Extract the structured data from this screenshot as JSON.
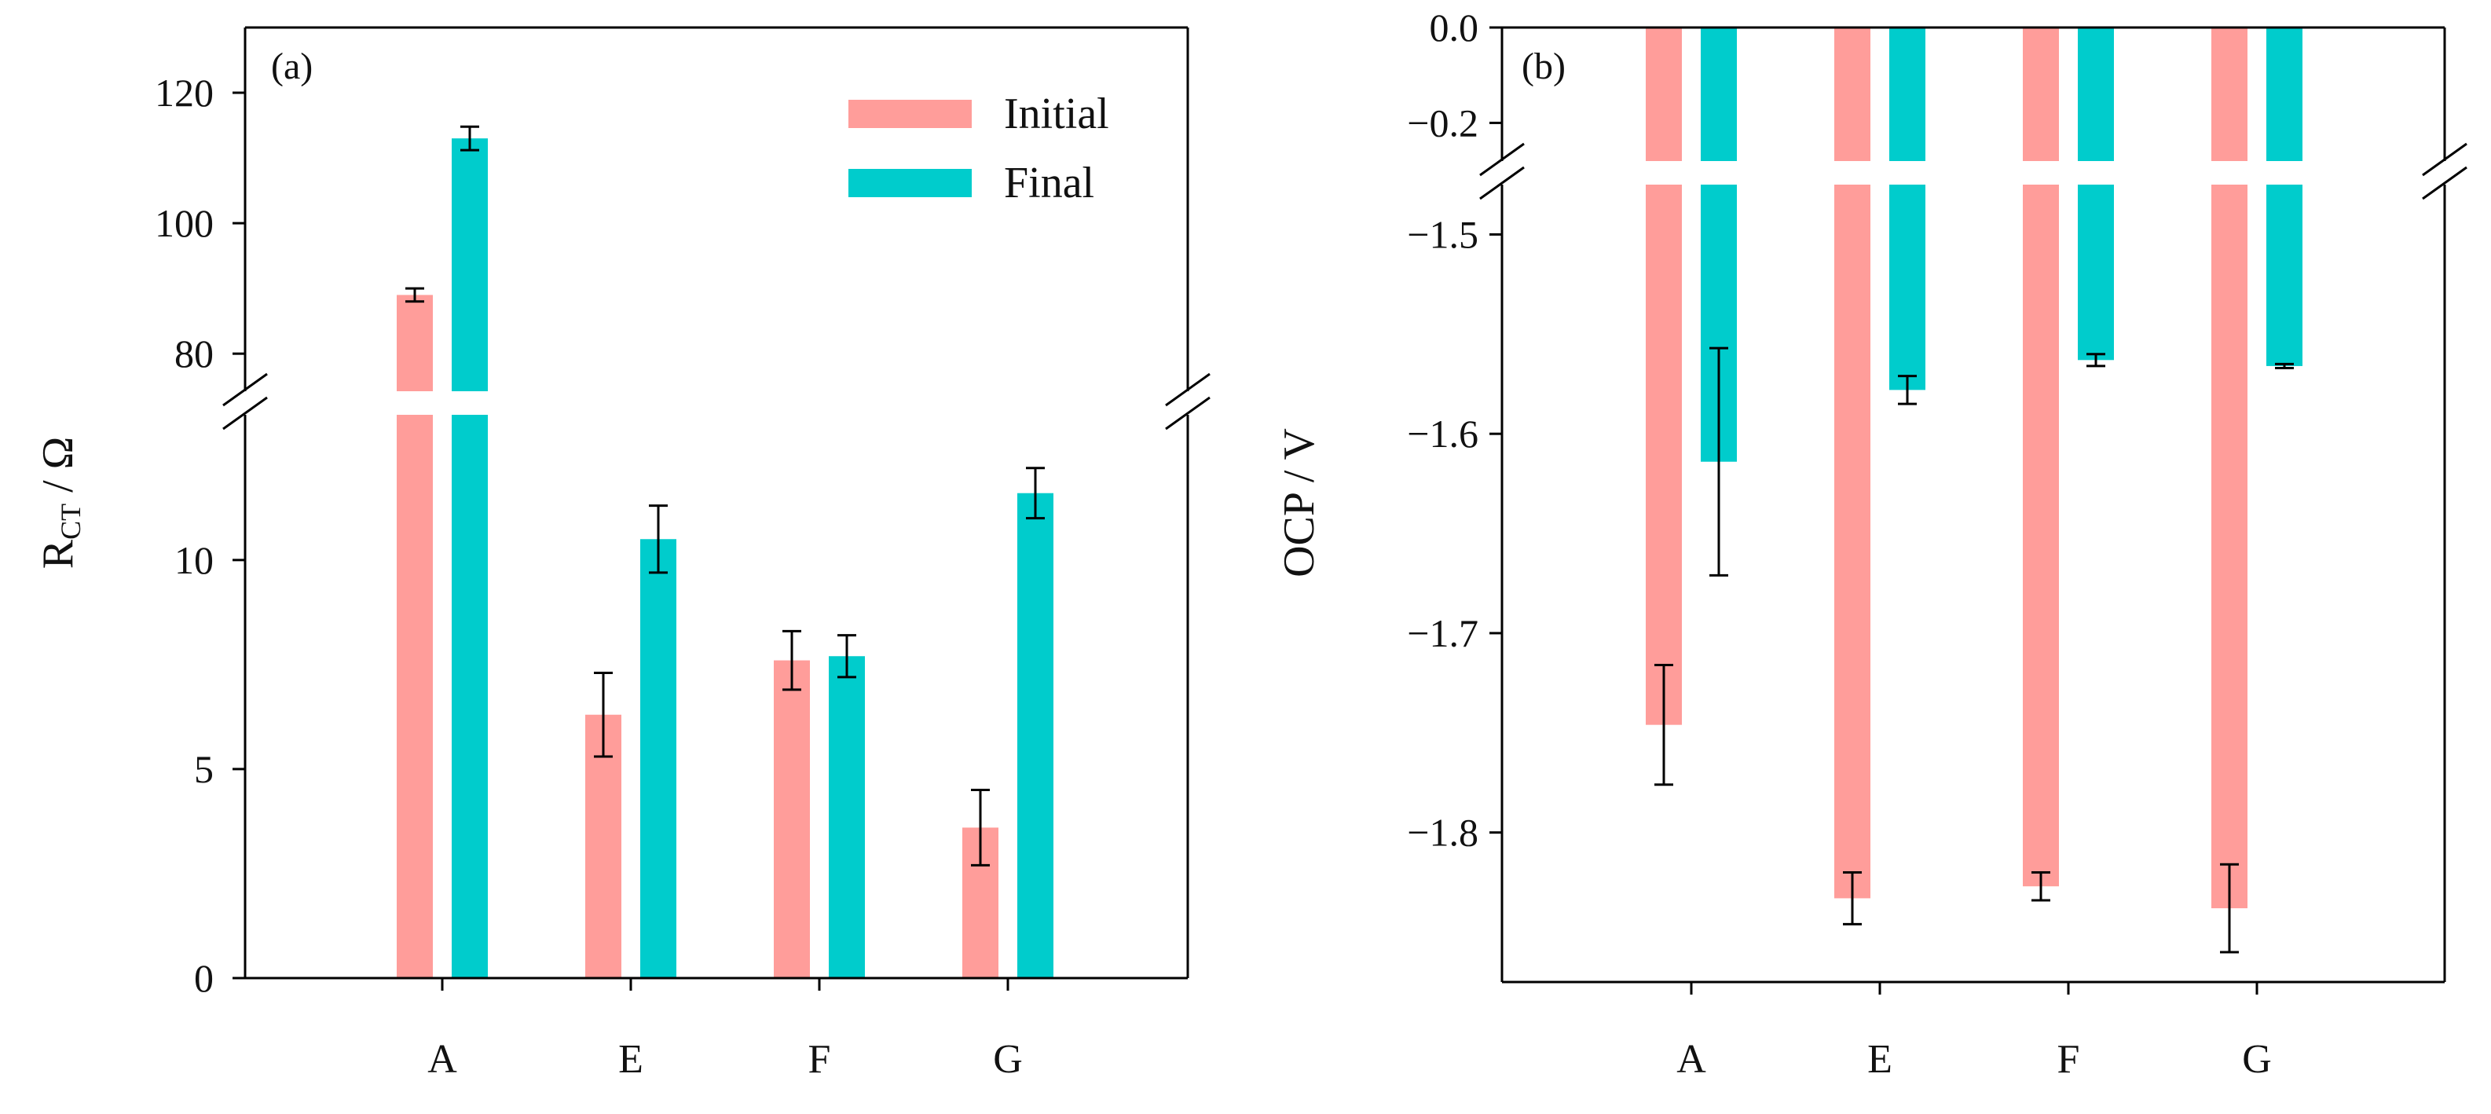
{
  "colors": {
    "initial": "#ff9d9a",
    "final": "#00cccc"
  },
  "chart_data": [
    {
      "type": "bar",
      "panel_label": "(a)",
      "categories": [
        "A",
        "E",
        "F",
        "G"
      ],
      "ylabel_main": "R",
      "ylabel_sub": "CT",
      "ylabel_tail": " / Ω",
      "y_axis_break": true,
      "ylim_lower": [
        0,
        14
      ],
      "ylim_upper": [
        74,
        130
      ],
      "yticks_lower": [
        0,
        5,
        10
      ],
      "yticks_upper": [
        80,
        100,
        120
      ],
      "legend": {
        "position": "top-right",
        "entries": [
          "Initial",
          "Final"
        ]
      },
      "series": [
        {
          "name": "Initial",
          "values": [
            89,
            6.3,
            7.6,
            3.6
          ],
          "errors": [
            1,
            1.0,
            0.7,
            0.9
          ]
        },
        {
          "name": "Final",
          "values": [
            113,
            10.5,
            7.7,
            11.6
          ],
          "errors": [
            1.8,
            0.8,
            0.5,
            0.6
          ]
        }
      ]
    },
    {
      "type": "bar",
      "panel_label": "(b)",
      "categories": [
        "A",
        "E",
        "F",
        "G"
      ],
      "ylabel": "OCP / V",
      "y_axis_break": true,
      "ylim_upper": [
        -0.28,
        0.0
      ],
      "ylim_lower": [
        -1.875,
        -1.475
      ],
      "yticks_upper": [
        0.0,
        -0.2
      ],
      "yticks_lower": [
        -1.5,
        -1.6,
        -1.7,
        -1.8
      ],
      "ytick_labels_upper": [
        "0.0",
        "−0.2"
      ],
      "ytick_labels_lower": [
        "−1.5",
        "−1.6",
        "−1.7",
        "−1.8"
      ],
      "series": [
        {
          "name": "Initial",
          "values": [
            -1.746,
            -1.833,
            -1.827,
            -1.838
          ],
          "errors": [
            0.03,
            0.013,
            0.007,
            0.022
          ]
        },
        {
          "name": "Final",
          "values": [
            -1.614,
            -1.578,
            -1.563,
            -1.566
          ],
          "errors": [
            0.057,
            0.007,
            0.003,
            0.001
          ]
        }
      ]
    }
  ]
}
